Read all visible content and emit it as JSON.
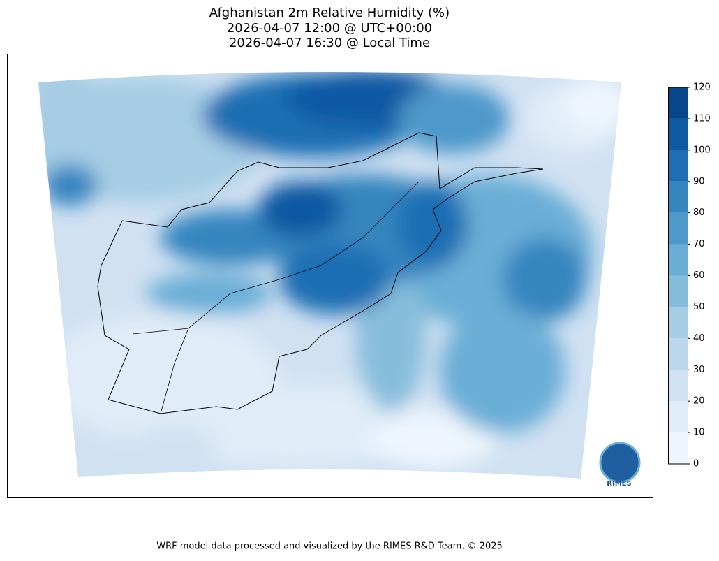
{
  "title_lines": [
    "Afghanistan 2m Relative Humidity (%)",
    "2026-04-07 12:00 @ UTC+00:00",
    "2026-04-07 16:30 @ Local Time"
  ],
  "colorbar": {
    "ticks": [
      0,
      10,
      20,
      30,
      40,
      50,
      60,
      70,
      80,
      90,
      100,
      110,
      120
    ],
    "colors": [
      "#eef5fd",
      "#e0ecf8",
      "#d0e1f2",
      "#bcd7ec",
      "#a6cde4",
      "#87bddc",
      "#6aaed6",
      "#4d99ca",
      "#3585bf",
      "#1f6eb3",
      "#0f59a3",
      "#08468b"
    ]
  },
  "logo_text": "RIMES",
  "footer": "WRF model data processed and visualized by the RIMES R&D Team. © 2025"
}
